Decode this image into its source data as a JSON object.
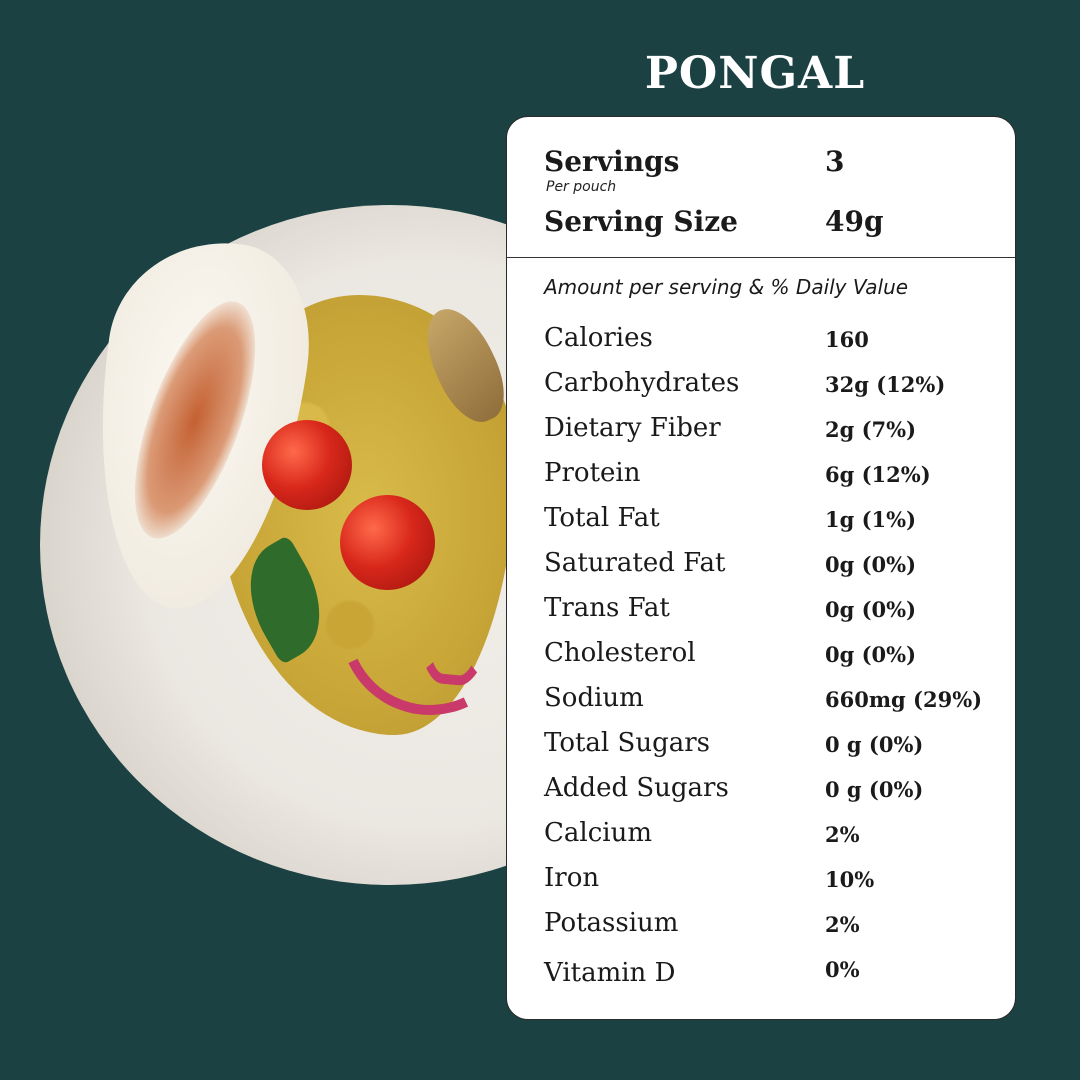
{
  "title": "PONGAL",
  "header": {
    "servings_label": "Servings",
    "servings_value": "3",
    "per_pouch": "Per pouch",
    "serving_size_label": "Serving Size",
    "serving_size_value": "49g"
  },
  "amount_caption": "Amount per serving & % Daily Value",
  "nutrients": [
    {
      "label": "Calories",
      "value": "160"
    },
    {
      "label": "Carbohydrates",
      "value": "32g (12%)"
    },
    {
      "label": "Dietary Fiber",
      "value": "2g (7%)"
    },
    {
      "label": "Protein",
      "value": "6g (12%)"
    },
    {
      "label": "Total Fat",
      "value": "1g (1%)"
    },
    {
      "label": "Saturated Fat",
      "value": "0g (0%)"
    },
    {
      "label": "Trans Fat",
      "value": "0g (0%)"
    },
    {
      "label": "Cholesterol",
      "value": "0g (0%)"
    },
    {
      "label": "Sodium",
      "value": "660mg (29%)"
    },
    {
      "label": "Total Sugars",
      "value": "0 g (0%)"
    },
    {
      "label": "Added Sugars",
      "value": "0 g (0%)"
    },
    {
      "label": "Calcium",
      "value": "2%"
    },
    {
      "label": "Iron",
      "value": "10%"
    },
    {
      "label": "Potassium",
      "value": "2%"
    },
    {
      "label": "Vitamin D",
      "value": "0%"
    }
  ],
  "colors": {
    "background": "#1c4143",
    "panel": "#ffffff",
    "text": "#1a1a1a"
  }
}
